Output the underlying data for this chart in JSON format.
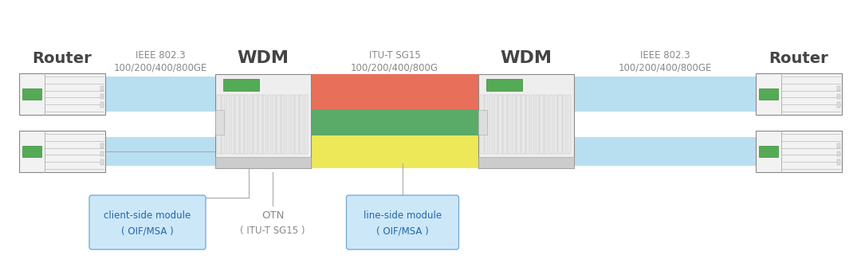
{
  "bg_color": "#ffffff",
  "router_label": "Router",
  "wdm_label": "WDM",
  "ieee_label1": "IEEE 802.3",
  "ieee_label2": "100/200/400/800GE",
  "itu_label1": "ITU-T SG15",
  "itu_label2": "100/200/400/800G",
  "otn_label1": "OTN",
  "otn_label2": "( ITU-T SG15 )",
  "client_label1": "client-side module",
  "client_label2": "( OIF/MSA )",
  "line_label1": "line-side module",
  "line_label2": "( OIF/MSA )",
  "blue_band": "#b8dff0",
  "blue_box_fill": "#cce8f8",
  "blue_box_edge": "#7baed4",
  "red_band": "#e8705a",
  "green_band": "#5aaa68",
  "yellow_band": "#ece858",
  "gray_line": "#aaaaaa",
  "router_face": "#f2f2f2",
  "router_edge": "#888888",
  "wdm_face": "#eeeeee",
  "wdm_edge": "#888888",
  "green_mod": "#55aa55",
  "green_mod_edge": "#3a8a3a",
  "slot_face": "#e0e0e0",
  "slot_edge": "#999999",
  "text_dark": "#444444",
  "text_mid": "#888888",
  "text_blue": "#2266aa"
}
